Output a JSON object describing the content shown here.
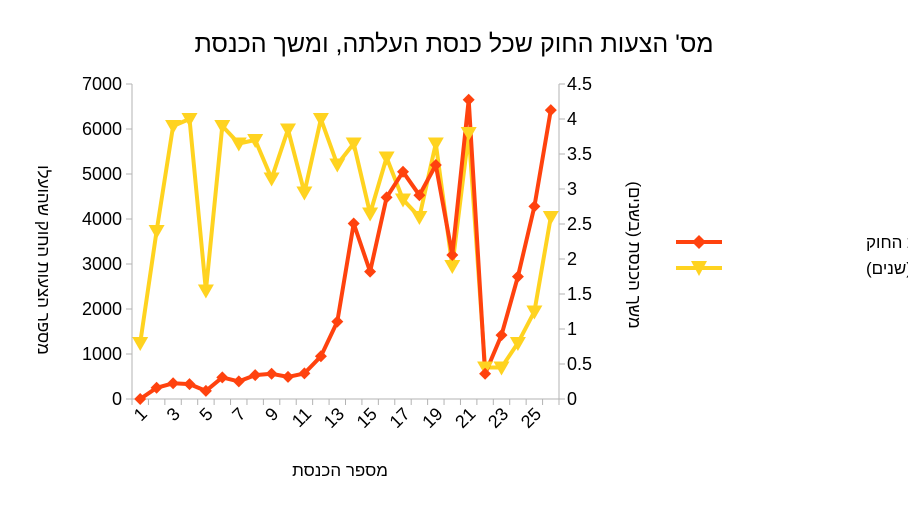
{
  "chart_data": {
    "type": "line",
    "title": "מס' הצעות החוק שכל כנסת העלתה, ומשך הכנסת",
    "xlabel": "מספר הכנסת",
    "ylabel": "מספר הצעות החוק שהועלו",
    "y2label": "משך הכנסת (בשנים)",
    "x": [
      1,
      2,
      3,
      4,
      5,
      6,
      7,
      8,
      9,
      10,
      11,
      12,
      13,
      14,
      15,
      16,
      17,
      18,
      19,
      20,
      21,
      22,
      23,
      24,
      25,
      26
    ],
    "x_tick_labels": [
      "1",
      "3",
      "5",
      "7",
      "9",
      "11",
      "13",
      "15",
      "17",
      "19",
      "21",
      "23",
      "25"
    ],
    "ylim": [
      0,
      7000
    ],
    "y_ticks": [
      0,
      1000,
      2000,
      3000,
      4000,
      5000,
      6000,
      7000
    ],
    "y2lim": [
      0,
      4.5
    ],
    "y2_ticks": [
      "0",
      "0.5",
      "1",
      "1.5",
      "2",
      "2.5",
      "3",
      "3.5",
      "4",
      "4.5"
    ],
    "grid": false,
    "legend_position": "right",
    "series": [
      {
        "name": "מס' הצעות החוק",
        "axis": "left",
        "color": "#ff420e",
        "marker": "diamond",
        "values": [
          0,
          250,
          350,
          330,
          180,
          480,
          390,
          530,
          560,
          490,
          570,
          950,
          1720,
          3900,
          2830,
          4480,
          5050,
          4530,
          5200,
          3200,
          6650,
          560,
          1420,
          2720,
          4280,
          6420
        ]
      },
      {
        "name": "משך הכנסת (שנים)",
        "axis": "right",
        "color": "#ffd320",
        "marker": "triangle-down",
        "values": [
          0.8,
          2.4,
          3.9,
          4.0,
          1.55,
          3.9,
          3.65,
          3.7,
          3.15,
          3.85,
          2.95,
          4.0,
          3.35,
          3.65,
          2.65,
          3.45,
          2.85,
          2.6,
          3.65,
          1.9,
          3.8,
          0.45,
          0.45,
          0.8,
          1.25,
          2.6
        ]
      }
    ]
  }
}
